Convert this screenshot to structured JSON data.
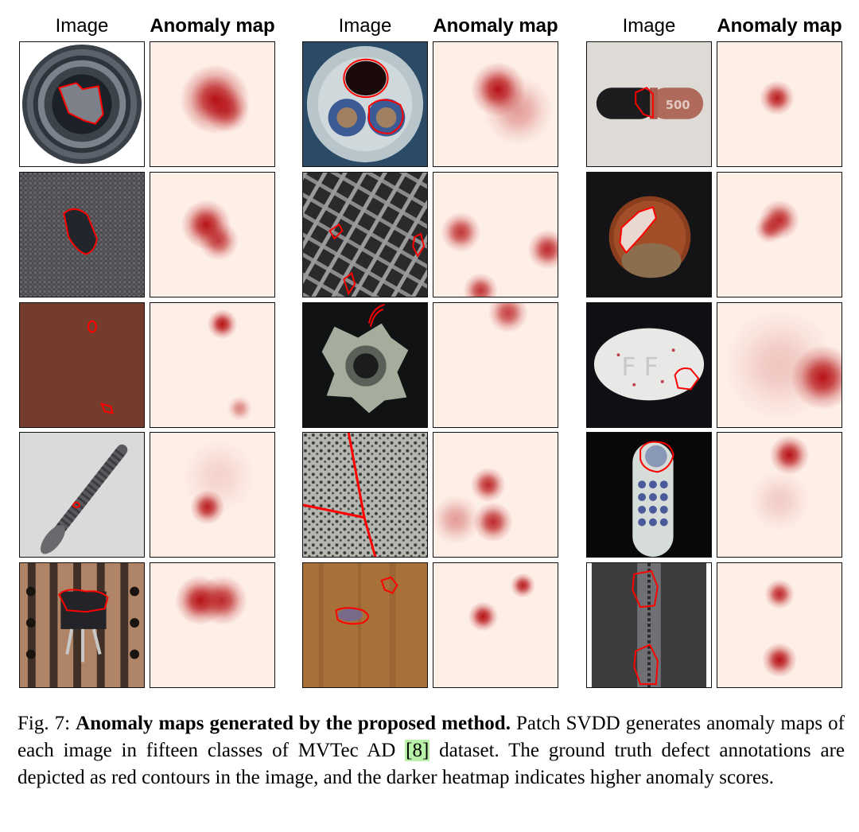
{
  "figure": {
    "header_image": "Image",
    "header_map": "Anomaly map",
    "caption": {
      "label": "Fig. 7:",
      "title": "Anomaly maps generated by the proposed method.",
      "text_1": "Patch SVDD generates anomaly maps of each image in fifteen classes of MVTec AD ",
      "ref": "[8]",
      "text_2": " dataset. The ground truth defect annotations are depicted as red contours in the image, and the darker heatmap indicates higher anomaly scores."
    },
    "colors": {
      "heat_high": "#b3060a",
      "heat_bg": "#fdeee6",
      "contour": "#ff0000"
    },
    "panels": [
      {
        "col": 0,
        "row": 0,
        "icon": "bottle-image",
        "map_spots": [
          [
            0.52,
            0.46,
            0.28,
            0.95
          ],
          [
            0.62,
            0.55,
            0.18,
            0.7
          ]
        ]
      },
      {
        "col": 1,
        "row": 0,
        "icon": "cable-image",
        "map_spots": [
          [
            0.52,
            0.38,
            0.22,
            0.95
          ],
          [
            0.68,
            0.55,
            0.28,
            0.35
          ]
        ]
      },
      {
        "col": 2,
        "row": 0,
        "icon": "capsule-image",
        "map_spots": [
          [
            0.48,
            0.45,
            0.14,
            0.9
          ]
        ]
      },
      {
        "col": 0,
        "row": 1,
        "icon": "carpet-image",
        "map_spots": [
          [
            0.45,
            0.42,
            0.2,
            0.95
          ],
          [
            0.55,
            0.55,
            0.16,
            0.75
          ]
        ]
      },
      {
        "col": 1,
        "row": 1,
        "icon": "grid-image",
        "map_spots": [
          [
            0.22,
            0.48,
            0.16,
            0.8
          ],
          [
            0.92,
            0.62,
            0.16,
            0.85
          ],
          [
            0.38,
            0.95,
            0.14,
            0.8
          ]
        ]
      },
      {
        "col": 2,
        "row": 1,
        "icon": "hazelnut-image",
        "map_spots": [
          [
            0.5,
            0.38,
            0.16,
            0.85
          ],
          [
            0.42,
            0.45,
            0.12,
            0.7
          ]
        ]
      },
      {
        "col": 0,
        "row": 2,
        "icon": "leather-image",
        "map_spots": [
          [
            0.58,
            0.17,
            0.12,
            0.95
          ],
          [
            0.72,
            0.85,
            0.1,
            0.45
          ]
        ]
      },
      {
        "col": 1,
        "row": 2,
        "icon": "metal-nut-image",
        "map_spots": [
          [
            0.6,
            0.08,
            0.16,
            0.75
          ]
        ]
      },
      {
        "col": 2,
        "row": 2,
        "icon": "pill-image",
        "map_spots": [
          [
            0.85,
            0.6,
            0.26,
            0.95
          ],
          [
            0.5,
            0.5,
            0.45,
            0.18
          ]
        ]
      },
      {
        "col": 0,
        "row": 3,
        "icon": "screw-image",
        "map_spots": [
          [
            0.46,
            0.6,
            0.14,
            0.9
          ],
          [
            0.55,
            0.35,
            0.3,
            0.12
          ]
        ]
      },
      {
        "col": 1,
        "row": 3,
        "icon": "tile-image",
        "map_spots": [
          [
            0.44,
            0.42,
            0.14,
            0.85
          ],
          [
            0.48,
            0.72,
            0.16,
            0.85
          ],
          [
            0.18,
            0.7,
            0.2,
            0.35
          ]
        ]
      },
      {
        "col": 2,
        "row": 3,
        "icon": "toothbrush-image",
        "map_spots": [
          [
            0.58,
            0.18,
            0.16,
            0.95
          ],
          [
            0.5,
            0.55,
            0.25,
            0.15
          ]
        ]
      },
      {
        "col": 0,
        "row": 4,
        "icon": "transistor-image",
        "map_spots": [
          [
            0.4,
            0.3,
            0.2,
            0.95
          ],
          [
            0.58,
            0.3,
            0.2,
            0.85
          ]
        ]
      },
      {
        "col": 1,
        "row": 4,
        "icon": "wood-image",
        "map_spots": [
          [
            0.4,
            0.43,
            0.12,
            0.95
          ],
          [
            0.72,
            0.18,
            0.1,
            0.9
          ]
        ]
      },
      {
        "col": 2,
        "row": 4,
        "icon": "zipper-image",
        "map_spots": [
          [
            0.5,
            0.25,
            0.12,
            0.85
          ],
          [
            0.5,
            0.78,
            0.14,
            0.95
          ]
        ]
      }
    ]
  }
}
